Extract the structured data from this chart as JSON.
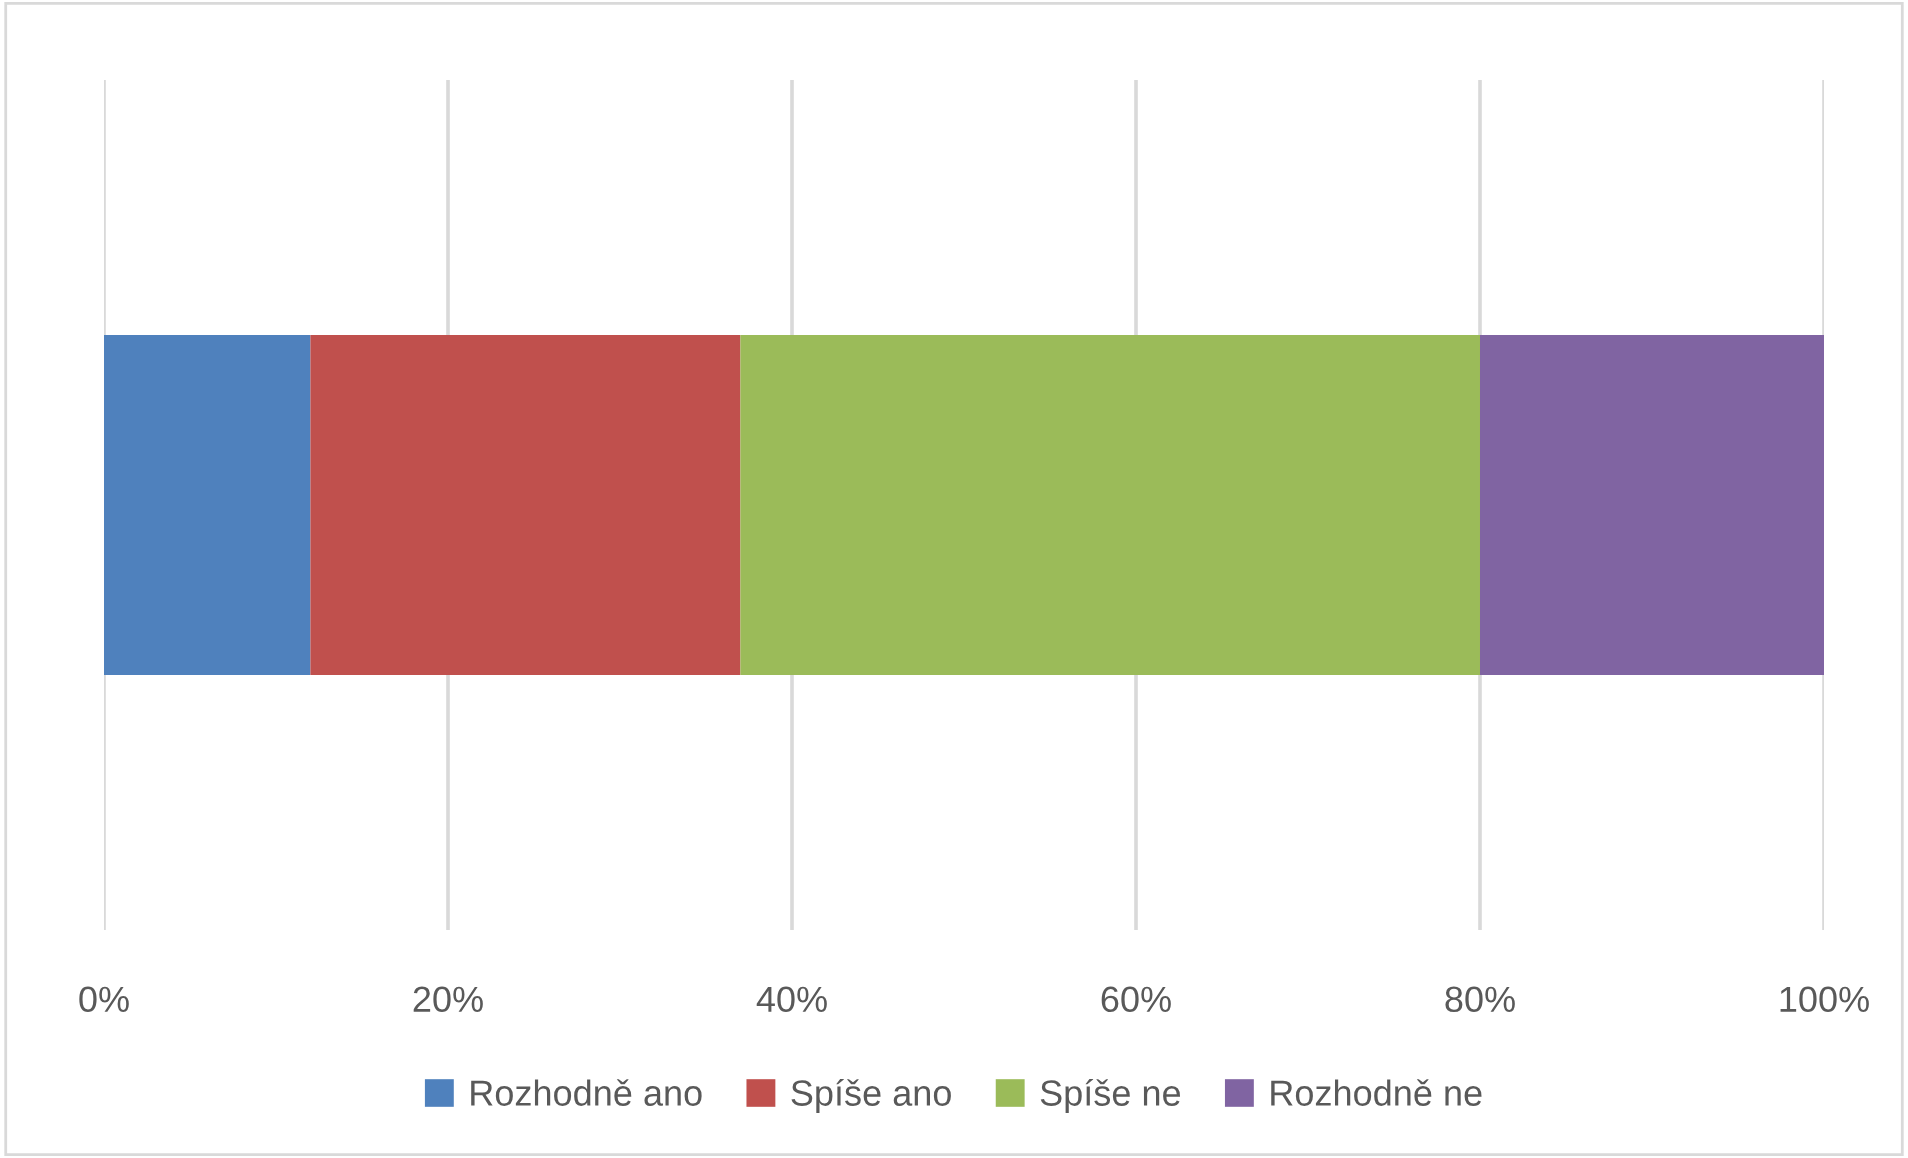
{
  "chart_data": {
    "type": "bar",
    "orientation": "horizontal",
    "stacked": true,
    "categories": [
      null
    ],
    "series": [
      {
        "name": "Rozhodně ano",
        "color": "#4f81bd",
        "values": [
          12
        ]
      },
      {
        "name": "Spíše ano",
        "color": "#c0504d",
        "values": [
          25
        ]
      },
      {
        "name": "Spíše ne",
        "color": "#9bbb59",
        "values": [
          43
        ]
      },
      {
        "name": "Rozhodně ne",
        "color": "#8064a2",
        "values": [
          20
        ]
      }
    ],
    "xlim": [
      0,
      100
    ],
    "xticks": [
      {
        "value": 0,
        "label": "0%"
      },
      {
        "value": 20,
        "label": "20%"
      },
      {
        "value": 40,
        "label": "40%"
      },
      {
        "value": 60,
        "label": "60%"
      },
      {
        "value": 80,
        "label": "80%"
      },
      {
        "value": 100,
        "label": "100%"
      }
    ],
    "grid": "x",
    "legend": "bottom",
    "tick_labels": "x"
  }
}
